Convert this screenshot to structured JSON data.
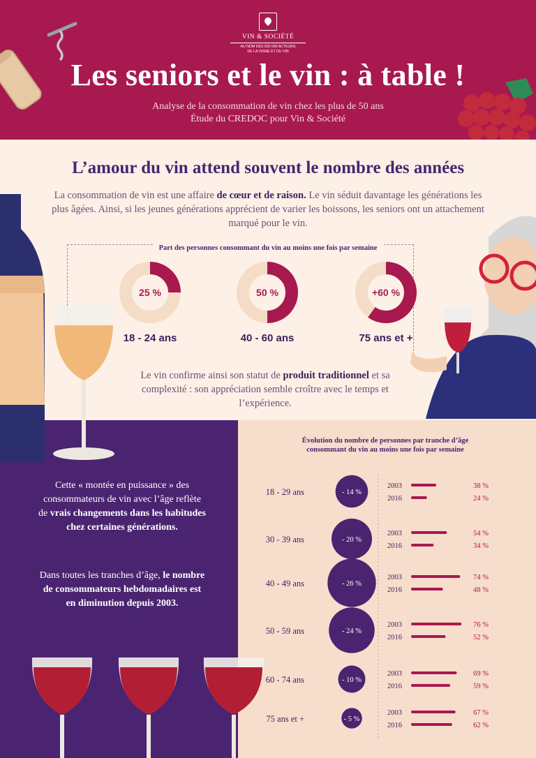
{
  "header": {
    "logo_name": "VIN & SOCIÉTÉ",
    "logo_tagline_1": "AU NOM DES 500 000 ACTEURS",
    "logo_tagline_2": "DE LA VIGNE ET DU VIN",
    "title": "Les seniors et le vin : à table !",
    "subtitle_1": "Analyse de la consommation de vin chez les plus de 50 ans",
    "subtitle_2": "Étude du CREDOC pour Vin & Société"
  },
  "section1": {
    "title": "L’amour du vin attend souvent le nombre des années",
    "intro_a": "La consommation de vin est une affaire ",
    "intro_b": "de cœur et de raison.",
    "intro_c": " Le vin séduit davantage les générations les plus âgées. Ainsi, si les jeunes générations apprécient de varier les boissons, les seniors ont un attachement marqué pour le vin.",
    "concl_a": "Le vin confirme ainsi son statut de ",
    "concl_b": "produit traditionnel",
    "concl_c": " et sa complexité : son appréciation semble croître avec le temps et l’expérience."
  },
  "section2": {
    "para1_a": "Cette « montée en puissance » des consommateurs de vin avec l’âge reflète de ",
    "para1_b": "vrais changements dans les habitudes chez certaines générations.",
    "para2_a": "Dans toutes les tranches d’âge, ",
    "para2_b": "le nombre de consommateurs hebdomadaires est en diminution depuis 2003."
  },
  "colors": {
    "header": "#a8194f",
    "purple": "#4a2470",
    "wine": "#a8194f",
    "ring_light": "#f5dcc7",
    "cream": "#fdf0e6",
    "peach": "#f7ddcc"
  },
  "chart_data": [
    {
      "type": "pie",
      "title": "Part des personnes consommant du vin au moins une fois par semaine",
      "categories": [
        "18 - 24 ans",
        "40 - 60 ans",
        "75 ans et +"
      ],
      "values": [
        25,
        50,
        60
      ],
      "value_labels": [
        "25 %",
        "50 %",
        "+60 %"
      ]
    },
    {
      "type": "bar",
      "title_1": "Évolution du nombre de personnes par tranche d’âge",
      "title_2": "consommant du  vin au moins une fois par semaine",
      "categories": [
        "18 - 29 ans",
        "30 - 39 ans",
        "40 - 49 ans",
        "50 - 59 ans",
        "60 - 74 ans",
        "75 ans et +"
      ],
      "series": [
        {
          "name": "2003",
          "values": [
            38,
            54,
            74,
            76,
            69,
            67
          ]
        },
        {
          "name": "2016",
          "values": [
            24,
            34,
            48,
            52,
            59,
            62
          ]
        }
      ],
      "value_labels_2003": [
        "38 %",
        "54 %",
        "74 %",
        "76 %",
        "69 %",
        "67 %"
      ],
      "value_labels_2016": [
        "24 %",
        "34 %",
        "48 %",
        "52 %",
        "59 %",
        "62 %"
      ],
      "change": [
        -14,
        -20,
        -26,
        -24,
        -10,
        -5
      ],
      "change_labels": [
        "- 14 %",
        "- 20 %",
        "- 26 %",
        "- 24 %",
        "- 10 %",
        "- 5 %"
      ],
      "xlim": [
        0,
        80
      ]
    }
  ]
}
